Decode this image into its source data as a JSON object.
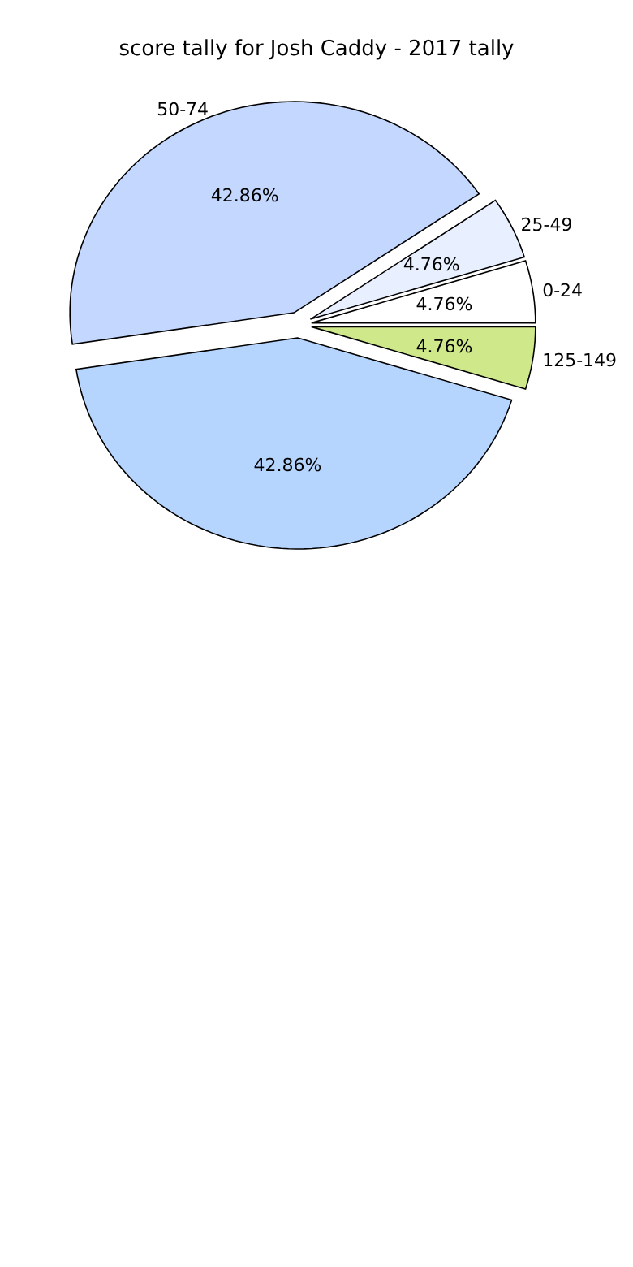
{
  "chart_data": {
    "type": "pie",
    "title": "score tally for Josh Caddy - 2017 tally",
    "categories": [
      "0-24",
      "25-49",
      "50-74",
      null,
      "125-149"
    ],
    "values": [
      4.76,
      4.76,
      42.86,
      42.86,
      4.76
    ],
    "colors": [
      "#ffffff",
      "#e8f0ff",
      "#c4d8ff",
      "#b5d5ff",
      "#cfe98a"
    ],
    "value_labels": [
      "4.76%",
      "4.76%",
      "42.86%",
      "42.86%",
      "4.76%"
    ]
  }
}
